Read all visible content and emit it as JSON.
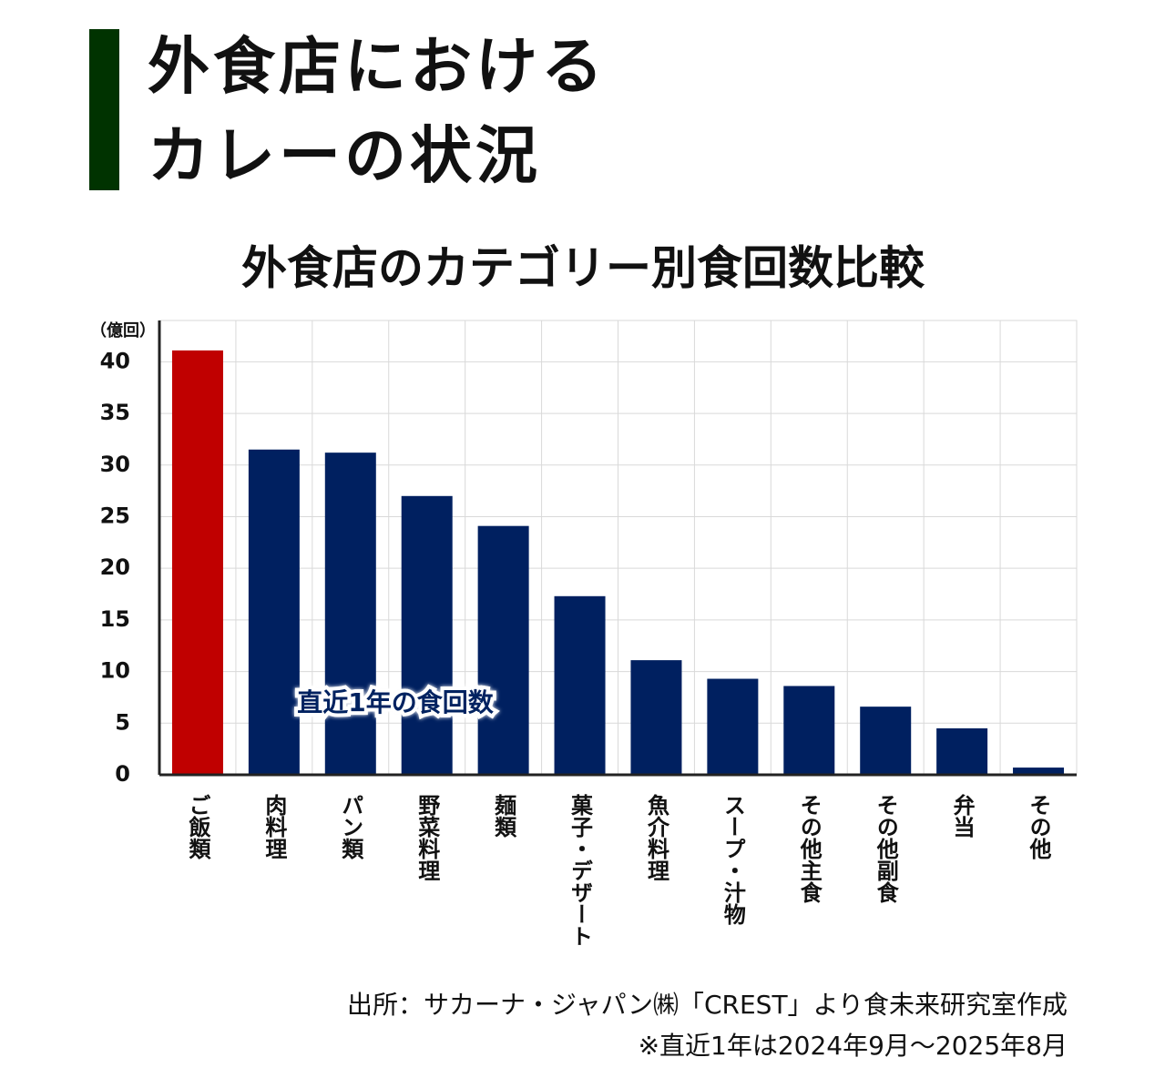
{
  "header": {
    "title_lines": [
      "外食店における",
      "カレーの状況"
    ]
  },
  "chart_data": {
    "type": "bar",
    "title": "外食店のカテゴリー別食回数比較",
    "y_unit": "（億回）",
    "categories": [
      "ご飯類",
      "肉料理",
      "パン類",
      "野菜料理",
      "麺類",
      "菓子・デザート",
      "魚介料理",
      "スープ・汁物",
      "その他主食",
      "その他副食",
      "弁当",
      "その他"
    ],
    "values": [
      41.1,
      31.5,
      31.2,
      27.0,
      24.1,
      17.3,
      11.1,
      9.3,
      8.6,
      6.6,
      4.5,
      0.7
    ],
    "colors": [
      "#c00000",
      "#002060",
      "#002060",
      "#002060",
      "#002060",
      "#002060",
      "#002060",
      "#002060",
      "#002060",
      "#002060",
      "#002060",
      "#002060"
    ],
    "ylim": [
      0,
      44
    ],
    "yticks": [
      0,
      5,
      10,
      15,
      20,
      25,
      30,
      35,
      40
    ],
    "grid": true,
    "annotation": "直近1年の食回数",
    "source": "出所：サカーナ・ジャパン㈱「CREST」より食未来研究室作成",
    "note": "※直近1年は2024年9月～2025年8月"
  }
}
